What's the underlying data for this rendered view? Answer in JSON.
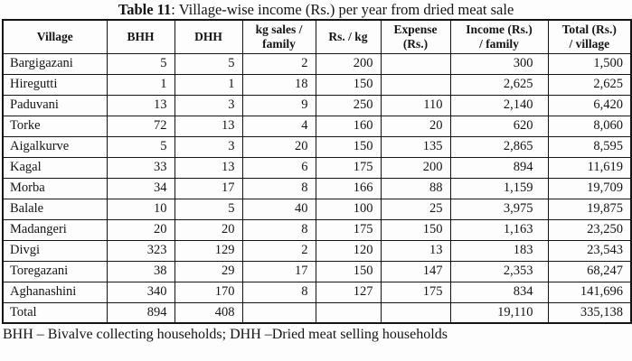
{
  "caption": {
    "label": "Table 11",
    "text": ": Village-wise income (Rs.) per year from dried meat sale",
    "footnote": "BHH – Bivalve collecting households; DHH –Dried meat selling households"
  },
  "table": {
    "columns": [
      "Village",
      "BHH",
      "DHH",
      "kg sales /\nfamily",
      "Rs. / kg",
      "Expense\n(Rs.)",
      "Income (Rs.)\n/ family",
      "Total (Rs.)\n/ village"
    ],
    "rows": [
      [
        "Bargigazani",
        "5",
        "5",
        "2",
        "200",
        "",
        "300",
        "1,500"
      ],
      [
        "Hiregutti",
        "1",
        "1",
        "18",
        "150",
        "",
        "2,625",
        "2,625"
      ],
      [
        "Paduvani",
        "13",
        "3",
        "9",
        "250",
        "110",
        "2,140",
        "6,420"
      ],
      [
        "Torke",
        "72",
        "13",
        "4",
        "160",
        "20",
        "620",
        "8,060"
      ],
      [
        "Aigalkurve",
        "5",
        "3",
        "20",
        "150",
        "135",
        "2,865",
        "8,595"
      ],
      [
        "Kagal",
        "33",
        "13",
        "6",
        "175",
        "200",
        "894",
        "11,619"
      ],
      [
        "Morba",
        "34",
        "17",
        "8",
        "166",
        "88",
        "1,159",
        "19,709"
      ],
      [
        "Balale",
        "10",
        "5",
        "40",
        "100",
        "25",
        "3,975",
        "19,875"
      ],
      [
        "Madangeri",
        "20",
        "20",
        "8",
        "175",
        "150",
        "1,163",
        "23,250"
      ],
      [
        "Divgi",
        "323",
        "129",
        "2",
        "120",
        "13",
        "183",
        "23,543"
      ],
      [
        "Toregazani",
        "38",
        "29",
        "17",
        "150",
        "147",
        "2,353",
        "68,247"
      ],
      [
        "Aghanashini",
        "340",
        "170",
        "8",
        "127",
        "175",
        "834",
        "141,696"
      ],
      [
        "Total",
        "894",
        "408",
        "",
        "",
        "",
        "19,110",
        "335,138"
      ]
    ]
  }
}
